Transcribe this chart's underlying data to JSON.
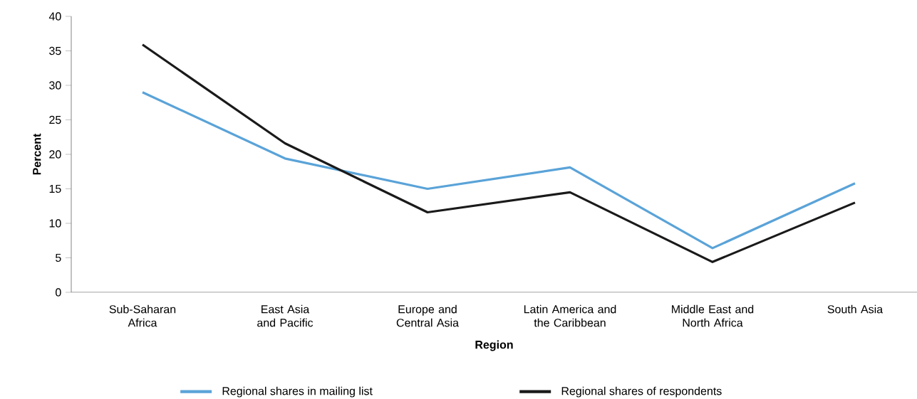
{
  "chart_data": {
    "type": "line",
    "xlabel": "Region",
    "ylabel": "Percent",
    "categories": [
      "Sub-Saharan Africa",
      "East Asia and Pacific",
      "Europe and Central Asia",
      "Latin America and the Caribbean",
      "Middle East and North Africa",
      "South Asia"
    ],
    "series": [
      {
        "name": "Regional shares in mailing list",
        "color": "#5aa3d8",
        "values": [
          29.0,
          19.4,
          15.0,
          18.1,
          6.4,
          15.8
        ]
      },
      {
        "name": "Regional shares of respondents",
        "color": "#1a1a1a",
        "values": [
          35.9,
          21.6,
          11.6,
          14.5,
          4.4,
          13.0
        ]
      }
    ],
    "ylim": [
      0,
      40
    ],
    "yticks": [
      0,
      5,
      10,
      15,
      20,
      25,
      30,
      35,
      40
    ],
    "legend": "bottom"
  }
}
